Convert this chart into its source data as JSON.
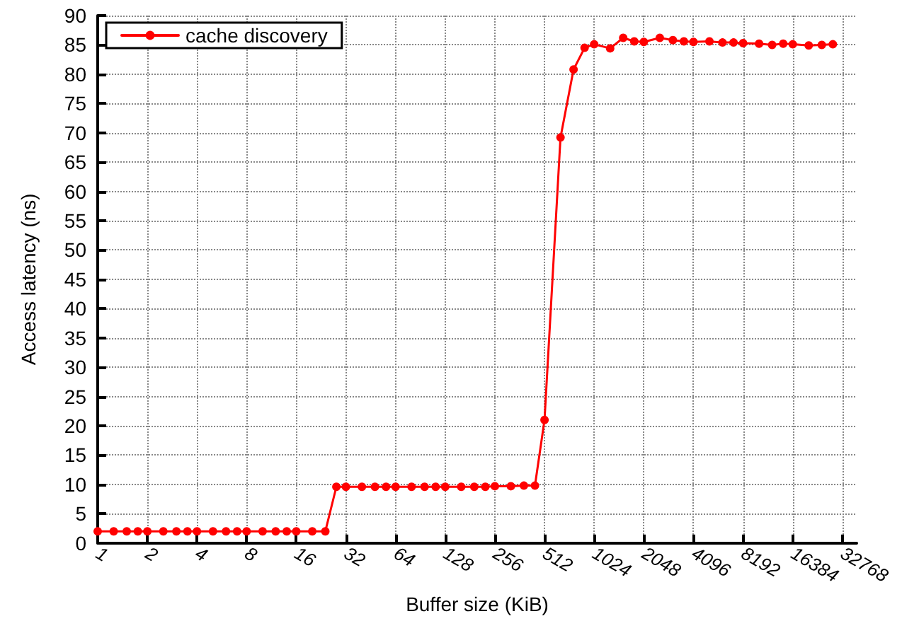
{
  "chart_data": {
    "type": "line",
    "xlabel": "Buffer size (KiB)",
    "ylabel": "Access latency (ns)",
    "log": "x",
    "xlim": [
      1,
      40000
    ],
    "xticks": [
      1,
      2,
      4,
      8,
      16,
      32,
      64,
      128,
      256,
      512,
      1024,
      2048,
      4096,
      8192,
      16384,
      32768
    ],
    "ylim": [
      0,
      90
    ],
    "yticks": [
      0,
      5,
      10,
      15,
      20,
      25,
      30,
      35,
      40,
      45,
      50,
      55,
      60,
      65,
      70,
      75,
      80,
      85,
      90
    ],
    "grid": true,
    "legend": "top left",
    "marker": "circle",
    "line_style": "solid",
    "series": [
      {
        "name": "cache discovery",
        "color": "#ff0000",
        "x": [
          1,
          1.25,
          1.5,
          1.75,
          2,
          2.5,
          3,
          3.5,
          4,
          5,
          6,
          7,
          8,
          10,
          12,
          14,
          16,
          20,
          24,
          28,
          32,
          40,
          48,
          56,
          64,
          80,
          96,
          112,
          128,
          160,
          192,
          224,
          256,
          320,
          384,
          448,
          512,
          640,
          768,
          896,
          1024,
          1280,
          1536,
          1792,
          2048,
          2560,
          3072,
          3584,
          4096,
          5120,
          6144,
          7168,
          8192,
          10240,
          12288,
          14336,
          16384,
          20480,
          24576,
          28672
        ],
        "values": [
          2,
          2,
          2,
          2,
          2,
          2,
          2,
          2,
          2,
          2,
          2,
          2,
          2,
          2,
          2,
          2,
          2,
          2,
          2,
          9.6,
          9.6,
          9.6,
          9.6,
          9.6,
          9.6,
          9.6,
          9.6,
          9.6,
          9.6,
          9.6,
          9.6,
          9.6,
          9.7,
          9.7,
          9.8,
          9.8,
          21,
          69.2,
          80.8,
          84.5,
          85.1,
          84.4,
          86.2,
          85.6,
          85.5,
          86.2,
          85.8,
          85.6,
          85.5,
          85.6,
          85.4,
          85.4,
          85.3,
          85.2,
          85,
          85.2,
          85.1,
          84.9,
          85,
          85.1
        ]
      }
    ]
  }
}
